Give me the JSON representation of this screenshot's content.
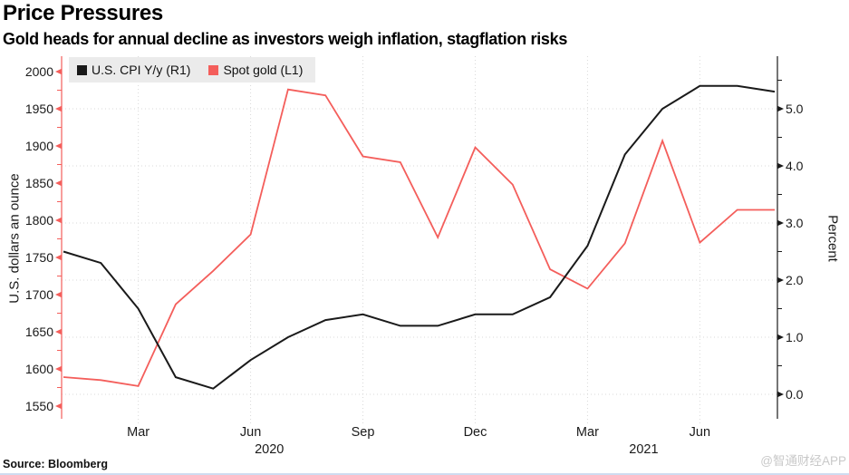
{
  "chart_data": {
    "type": "line",
    "title": "Price Pressures",
    "subtitle": "Gold heads for annual decline as investors weigh inflation, stagflation risks",
    "months": [
      "Jan 2020",
      "Feb 2020",
      "Mar 2020",
      "Apr 2020",
      "May 2020",
      "Jun 2020",
      "Jul 2020",
      "Aug 2020",
      "Sep 2020",
      "Oct 2020",
      "Nov 2020",
      "Dec 2020",
      "Jan 2021",
      "Feb 2021",
      "Mar 2021",
      "Apr 2021",
      "May 2021",
      "Jun 2021",
      "Jul 2021",
      "Aug 2021"
    ],
    "series": [
      {
        "name": "U.S. CPI Y/y (R1)",
        "axis": "right",
        "color": "#1a1a1a",
        "values": [
          2.5,
          2.3,
          1.5,
          0.3,
          0.1,
          0.6,
          1.0,
          1.3,
          1.4,
          1.2,
          1.2,
          1.4,
          1.4,
          1.7,
          2.6,
          4.2,
          5.0,
          5.4,
          5.4,
          5.3
        ]
      },
      {
        "name": "Spot gold (L1)",
        "axis": "left",
        "color": "#f45e5b",
        "values": [
          1589,
          1585,
          1577,
          1687,
          1732,
          1781,
          1976,
          1968,
          1886,
          1878,
          1777,
          1898,
          1848,
          1734,
          1708,
          1769,
          1907,
          1770,
          1814,
          1814
        ]
      }
    ],
    "left_axis": {
      "title": "U.S. dollars an ounce",
      "min": 1550,
      "max": 2000,
      "tick_step": 50,
      "minor_step": 25
    },
    "right_axis": {
      "title": "Percent",
      "min": 0,
      "max": 5,
      "tick_step": 1,
      "minor_step": 0.5,
      "decimals": 1
    },
    "x_ticks": [
      {
        "label": "Mar",
        "month_index": 2
      },
      {
        "label": "Jun",
        "month_index": 5
      },
      {
        "label": "Sep",
        "month_index": 8
      },
      {
        "label": "Dec",
        "month_index": 11
      },
      {
        "label": "Mar",
        "month_index": 14
      },
      {
        "label": "Jun",
        "month_index": 17
      }
    ],
    "year_labels": [
      {
        "label": "2020",
        "from_month": 0,
        "to_month": 11
      },
      {
        "label": "2021",
        "from_month": 12,
        "to_month": 19
      }
    ],
    "grid": true,
    "legend_position": "top-left"
  },
  "colors": {
    "grid": "#d9d9d9",
    "legend_bg": "#ebebeb",
    "tick_text": "#1a1a1a",
    "watermark_text": "#c9c9c9",
    "bottom_edge": "#cfdcf0"
  },
  "footer": {
    "source": "Source: Bloomberg",
    "watermark": "@智通财经APP"
  }
}
